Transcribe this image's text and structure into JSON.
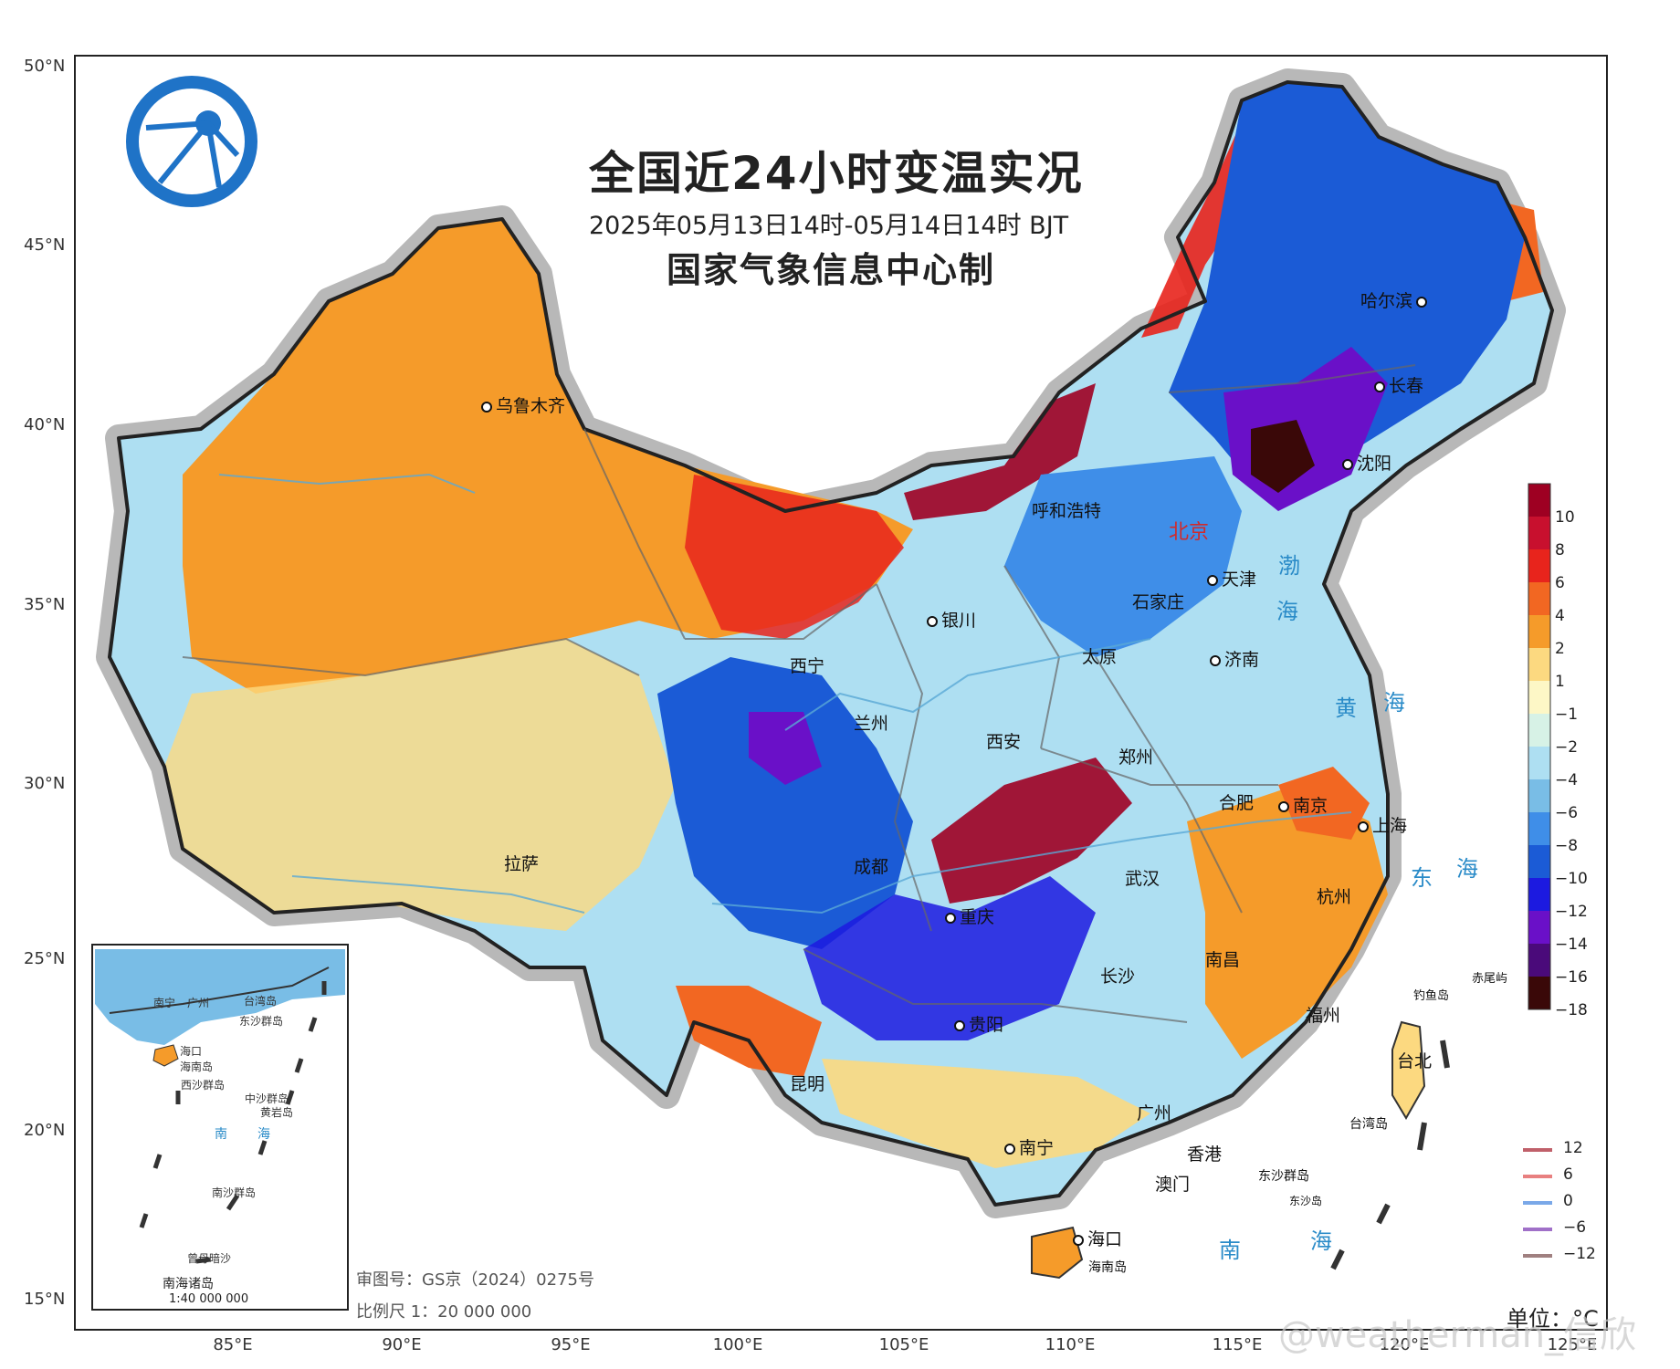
{
  "title": "全国近24小时变温实况",
  "subtitle": "2025年05月13日14时-05月14日14时 BJT",
  "producer": "国家气象信息中心制",
  "latitudes": [
    "50°N",
    "45°N",
    "40°N",
    "35°N",
    "30°N",
    "25°N",
    "20°N",
    "15°N"
  ],
  "longitudes": [
    "85°E",
    "90°E",
    "95°E",
    "100°E",
    "105°E",
    "110°E",
    "115°E",
    "120°E",
    "125°E"
  ],
  "cities": [
    {
      "name": "乌鲁木齐"
    },
    {
      "name": "哈尔滨"
    },
    {
      "name": "长春"
    },
    {
      "name": "沈阳"
    },
    {
      "name": "呼和浩特"
    },
    {
      "name": "北京"
    },
    {
      "name": "天津"
    },
    {
      "name": "石家庄"
    },
    {
      "name": "银川"
    },
    {
      "name": "太原"
    },
    {
      "name": "济南"
    },
    {
      "name": "西宁"
    },
    {
      "name": "兰州"
    },
    {
      "name": "西安"
    },
    {
      "name": "郑州"
    },
    {
      "name": "合肥"
    },
    {
      "name": "南京"
    },
    {
      "name": "上海"
    },
    {
      "name": "拉萨"
    },
    {
      "name": "成都"
    },
    {
      "name": "武汉"
    },
    {
      "name": "杭州"
    },
    {
      "name": "重庆"
    },
    {
      "name": "南昌"
    },
    {
      "name": "长沙"
    },
    {
      "name": "福州"
    },
    {
      "name": "贵阳"
    },
    {
      "name": "台北"
    },
    {
      "name": "昆明"
    },
    {
      "name": "广州"
    },
    {
      "name": "南宁"
    },
    {
      "name": "香港"
    },
    {
      "name": "澳门"
    },
    {
      "name": "海口"
    }
  ],
  "waters": [
    "渤",
    "海",
    "黄",
    "海",
    "东",
    "海",
    "南",
    "海"
  ],
  "islands": [
    "钓鱼岛",
    "赤尾屿",
    "台湾岛",
    "东沙群岛",
    "东沙岛",
    "海南岛"
  ],
  "colorbar": {
    "labels": [
      "10",
      "8",
      "6",
      "4",
      "2",
      "1",
      "−1",
      "−2",
      "−4",
      "−6",
      "−8",
      "−10",
      "−12",
      "−14",
      "−16",
      "−18"
    ],
    "colors": [
      "#9e0022",
      "#c8102e",
      "#e8241c",
      "#f26722",
      "#f59b2a",
      "#fcd980",
      "#fdf7c6",
      "#d7f2e6",
      "#aedff2",
      "#79bde6",
      "#3f8ee8",
      "#1b5bd6",
      "#1c1ae0",
      "#6a10c8",
      "#4a0a7a",
      "#3a0808"
    ]
  },
  "contour_legend": [
    {
      "label": "12",
      "color": "#c0606a"
    },
    {
      "label": "6",
      "color": "#e88080"
    },
    {
      "label": "0",
      "color": "#7aa8e8"
    },
    {
      "label": "−6",
      "color": "#a070c8"
    },
    {
      "label": "−12",
      "color": "#a08080"
    }
  ],
  "audit": "审图号：GS京（2024）0275号",
  "scale": "比例尺 1：20 000 000",
  "unit": "单位：°C",
  "watermark": "@weatherman_信欣",
  "inset": {
    "caption": "南海诸岛",
    "scale": "1:40 000 000",
    "labels": [
      "南宁",
      "广州",
      "台湾岛",
      "海口",
      "东沙群岛",
      "海南岛",
      "西沙群岛",
      "中沙群岛",
      "南",
      "海",
      "黄岩岛",
      "南沙群岛",
      "曾母暗沙"
    ]
  }
}
